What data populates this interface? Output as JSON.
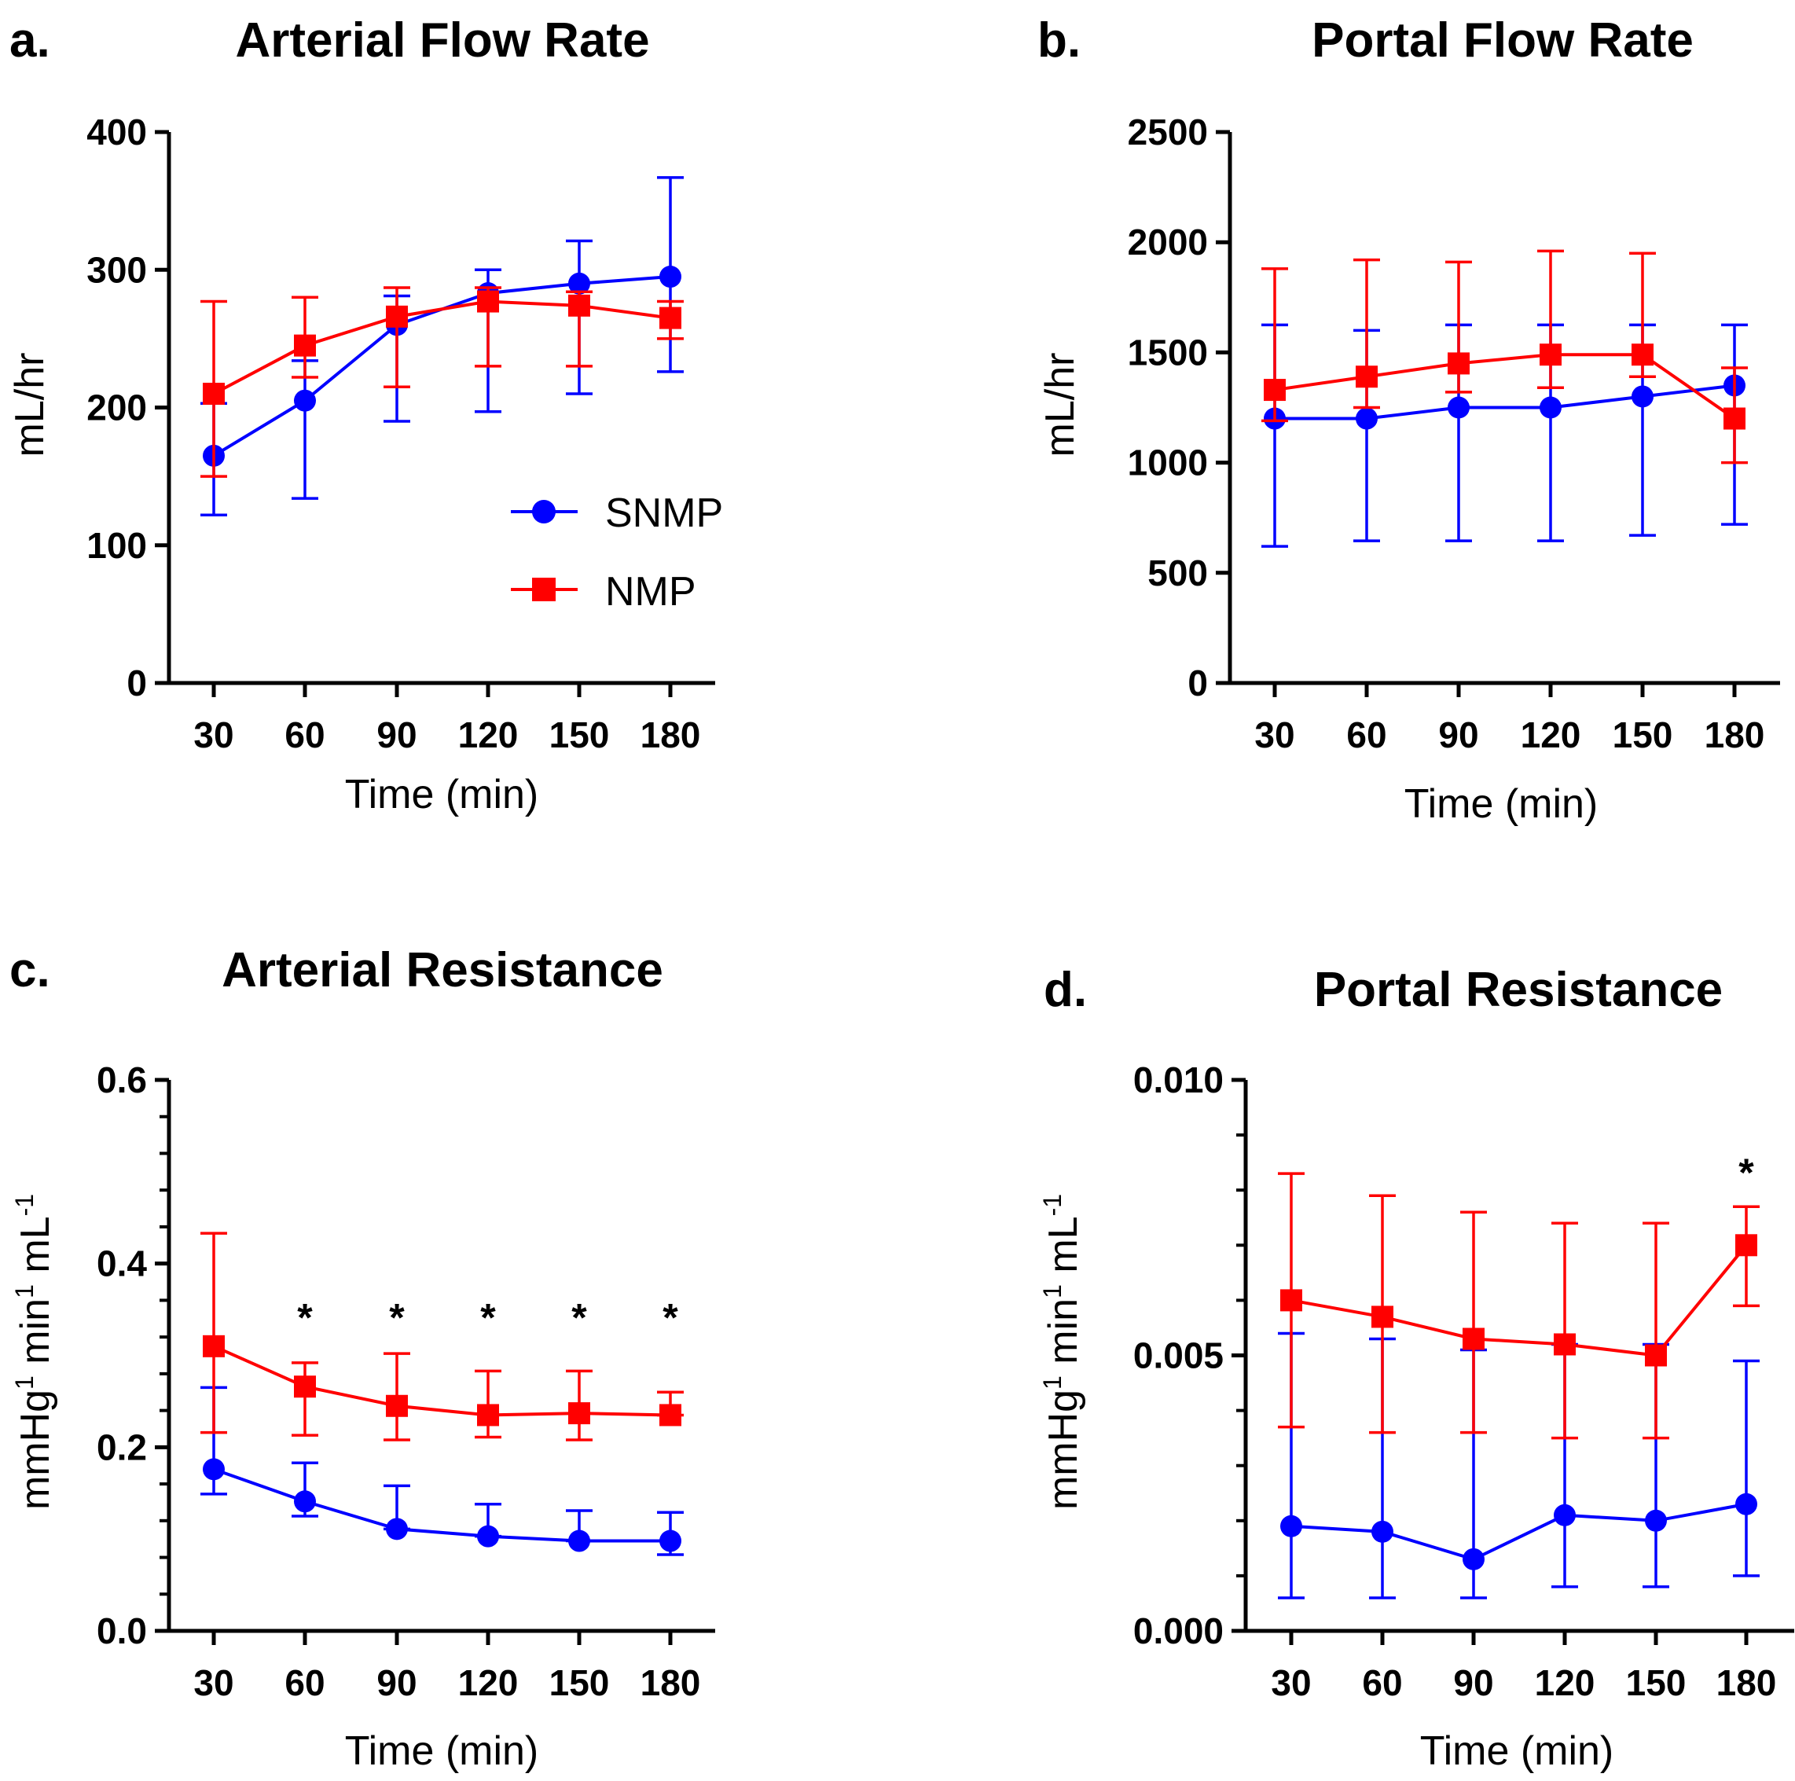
{
  "colors": {
    "SNMP": "#0000ff",
    "NMP": "#ff0000",
    "axis": "#000000"
  },
  "legend": [
    {
      "name": "SNMP",
      "marker": "circle",
      "color": "#0000ff"
    },
    {
      "name": "NMP",
      "marker": "square",
      "color": "#ff0000"
    }
  ],
  "chart_data": [
    {
      "id": "a",
      "panel": "a.",
      "type": "line",
      "title": "Arterial Flow Rate",
      "xlabel": "Time (min)",
      "ylabel": "mL/hr",
      "categories": [
        "30",
        "60",
        "90",
        "120",
        "150",
        "180"
      ],
      "ylim": [
        0,
        400
      ],
      "yticks": [
        "0",
        "100",
        "200",
        "300",
        "400"
      ],
      "minor_ticks": false,
      "series": [
        {
          "name": "SNMP",
          "marker": "circle",
          "values": [
            165,
            205,
            260,
            283,
            290,
            295
          ],
          "err_low": [
            122,
            134,
            190,
            197,
            210,
            226
          ],
          "err_high": [
            203,
            234,
            281,
            300,
            321,
            367
          ]
        },
        {
          "name": "NMP",
          "marker": "square",
          "values": [
            210,
            245,
            266,
            277,
            274,
            265
          ],
          "err_low": [
            150,
            222,
            215,
            230,
            230,
            250
          ],
          "err_high": [
            277,
            280,
            287,
            287,
            284,
            277
          ]
        }
      ],
      "significance": []
    },
    {
      "id": "b",
      "panel": "b.",
      "type": "line",
      "title": "Portal Flow Rate",
      "xlabel": "Time (min)",
      "ylabel": "mL/hr",
      "categories": [
        "30",
        "60",
        "90",
        "120",
        "150",
        "180"
      ],
      "ylim": [
        0,
        2500
      ],
      "yticks": [
        "0",
        "500",
        "1000",
        "1500",
        "2000",
        "2500"
      ],
      "minor_ticks": false,
      "series": [
        {
          "name": "SNMP",
          "marker": "circle",
          "values": [
            1200,
            1200,
            1250,
            1250,
            1300,
            1350
          ],
          "err_low": [
            620,
            645,
            645,
            645,
            670,
            720
          ],
          "err_high": [
            1625,
            1600,
            1625,
            1625,
            1625,
            1625
          ]
        },
        {
          "name": "NMP",
          "marker": "square",
          "values": [
            1330,
            1390,
            1450,
            1490,
            1490,
            1200
          ],
          "err_low": [
            1190,
            1250,
            1320,
            1340,
            1390,
            1000
          ],
          "err_high": [
            1880,
            1920,
            1910,
            1960,
            1950,
            1430
          ]
        }
      ],
      "significance": []
    },
    {
      "id": "c",
      "panel": "c.",
      "type": "line",
      "title": "Arterial Resistance",
      "xlabel": "Time (min)",
      "ylabel_parts": [
        {
          "text": "mmHg",
          "sup": "1"
        },
        {
          "text": " min",
          "sup": "1"
        },
        {
          "text": " mL",
          "sup": "-1"
        }
      ],
      "categories": [
        "30",
        "60",
        "90",
        "120",
        "150",
        "180"
      ],
      "ylim": [
        0,
        0.6
      ],
      "yticks": [
        "0.0",
        "0.2",
        "0.4",
        "0.6"
      ],
      "minor_ticks": true,
      "series": [
        {
          "name": "SNMP",
          "marker": "circle",
          "values": [
            0.176,
            0.141,
            0.111,
            0.103,
            0.098,
            0.098
          ],
          "err_low": [
            0.149,
            0.125,
            0.111,
            0.103,
            0.098,
            0.083
          ],
          "err_high": [
            0.265,
            0.183,
            0.158,
            0.138,
            0.131,
            0.129
          ]
        },
        {
          "name": "NMP",
          "marker": "square",
          "values": [
            0.31,
            0.266,
            0.245,
            0.235,
            0.237,
            0.235
          ],
          "err_low": [
            0.216,
            0.213,
            0.208,
            0.211,
            0.208,
            0.235
          ],
          "err_high": [
            0.433,
            0.292,
            0.302,
            0.283,
            0.283,
            0.26
          ]
        }
      ],
      "significance": [
        {
          "category": "60",
          "label": "*",
          "y": 0.352
        },
        {
          "category": "90",
          "label": "*",
          "y": 0.352
        },
        {
          "category": "120",
          "label": "*",
          "y": 0.352
        },
        {
          "category": "150",
          "label": "*",
          "y": 0.352
        },
        {
          "category": "180",
          "label": "*",
          "y": 0.352
        }
      ]
    },
    {
      "id": "d",
      "panel": "d.",
      "type": "line",
      "title": "Portal Resistance",
      "xlabel": "Time (min)",
      "ylabel_parts": [
        {
          "text": "mmHg",
          "sup": "1"
        },
        {
          "text": " min",
          "sup": "1"
        },
        {
          "text": " mL",
          "sup": "-1"
        }
      ],
      "categories": [
        "30",
        "60",
        "90",
        "120",
        "150",
        "180"
      ],
      "ylim": [
        0,
        0.01
      ],
      "yticks": [
        "0.000",
        "0.005",
        "0.010"
      ],
      "minor_ticks": true,
      "series": [
        {
          "name": "SNMP",
          "marker": "circle",
          "values": [
            0.0019,
            0.0018,
            0.0013,
            0.0021,
            0.002,
            0.0023
          ],
          "err_low": [
            0.0006,
            0.0006,
            0.0006,
            0.0008,
            0.0008,
            0.001
          ],
          "err_high": [
            0.0054,
            0.0053,
            0.0051,
            0.0052,
            0.0052,
            0.0049
          ]
        },
        {
          "name": "NMP",
          "marker": "square",
          "values": [
            0.006,
            0.0057,
            0.0053,
            0.0052,
            0.005,
            0.007
          ],
          "err_low": [
            0.0037,
            0.0036,
            0.0036,
            0.0035,
            0.0035,
            0.0059
          ],
          "err_high": [
            0.0083,
            0.0079,
            0.0076,
            0.0074,
            0.0074,
            0.0077
          ]
        }
      ],
      "significance": [
        {
          "category": "180",
          "label": "*",
          "y": 0.0085
        }
      ]
    }
  ]
}
